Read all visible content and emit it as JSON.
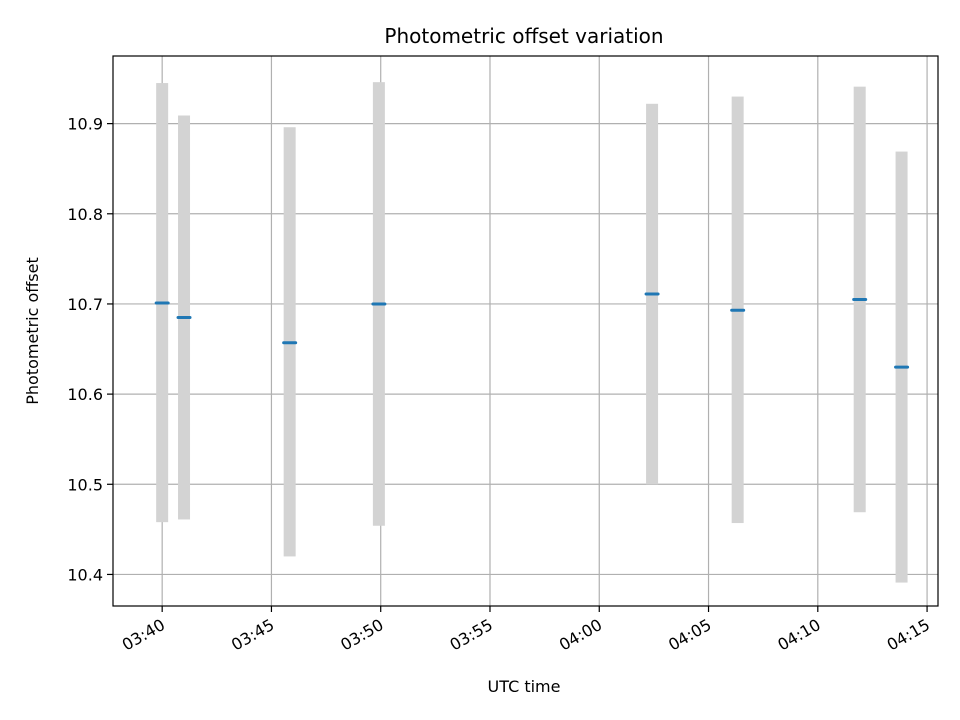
{
  "chart_data": {
    "type": "scatter",
    "title": "Photometric offset variation",
    "xlabel": "UTC time",
    "ylabel": "Photometric offset",
    "x_ticks": [
      "03:40",
      "03:45",
      "03:50",
      "03:55",
      "04:00",
      "04:05",
      "04:10",
      "04:15"
    ],
    "xlim": [
      "03:37:45",
      "04:15:30"
    ],
    "ylim": [
      10.365,
      10.975
    ],
    "y_ticks": [
      10.4,
      10.5,
      10.6,
      10.7,
      10.8,
      10.9
    ],
    "y_tick_labels": [
      "10.4",
      "10.5",
      "10.6",
      "10.7",
      "10.8",
      "10.9"
    ],
    "grid": true,
    "points": [
      {
        "time": "03:40:00",
        "y": 10.701,
        "err_low": 10.458,
        "err_high": 10.945
      },
      {
        "time": "03:41:00",
        "y": 10.685,
        "err_low": 10.461,
        "err_high": 10.909
      },
      {
        "time": "03:45:50",
        "y": 10.657,
        "err_low": 10.42,
        "err_high": 10.896
      },
      {
        "time": "03:49:55",
        "y": 10.7,
        "err_low": 10.454,
        "err_high": 10.946
      },
      {
        "time": "04:02:25",
        "y": 10.711,
        "err_low": 10.5,
        "err_high": 10.922
      },
      {
        "time": "04:06:20",
        "y": 10.693,
        "err_low": 10.457,
        "err_high": 10.93
      },
      {
        "time": "04:11:55",
        "y": 10.705,
        "err_low": 10.469,
        "err_high": 10.941
      },
      {
        "time": "04:13:50",
        "y": 10.63,
        "err_low": 10.391,
        "err_high": 10.869
      }
    ],
    "colors": {
      "marker": "#1f77b4",
      "errorbar": "#d3d3d3",
      "grid": "#b0b0b0",
      "axes": "#000000"
    }
  }
}
